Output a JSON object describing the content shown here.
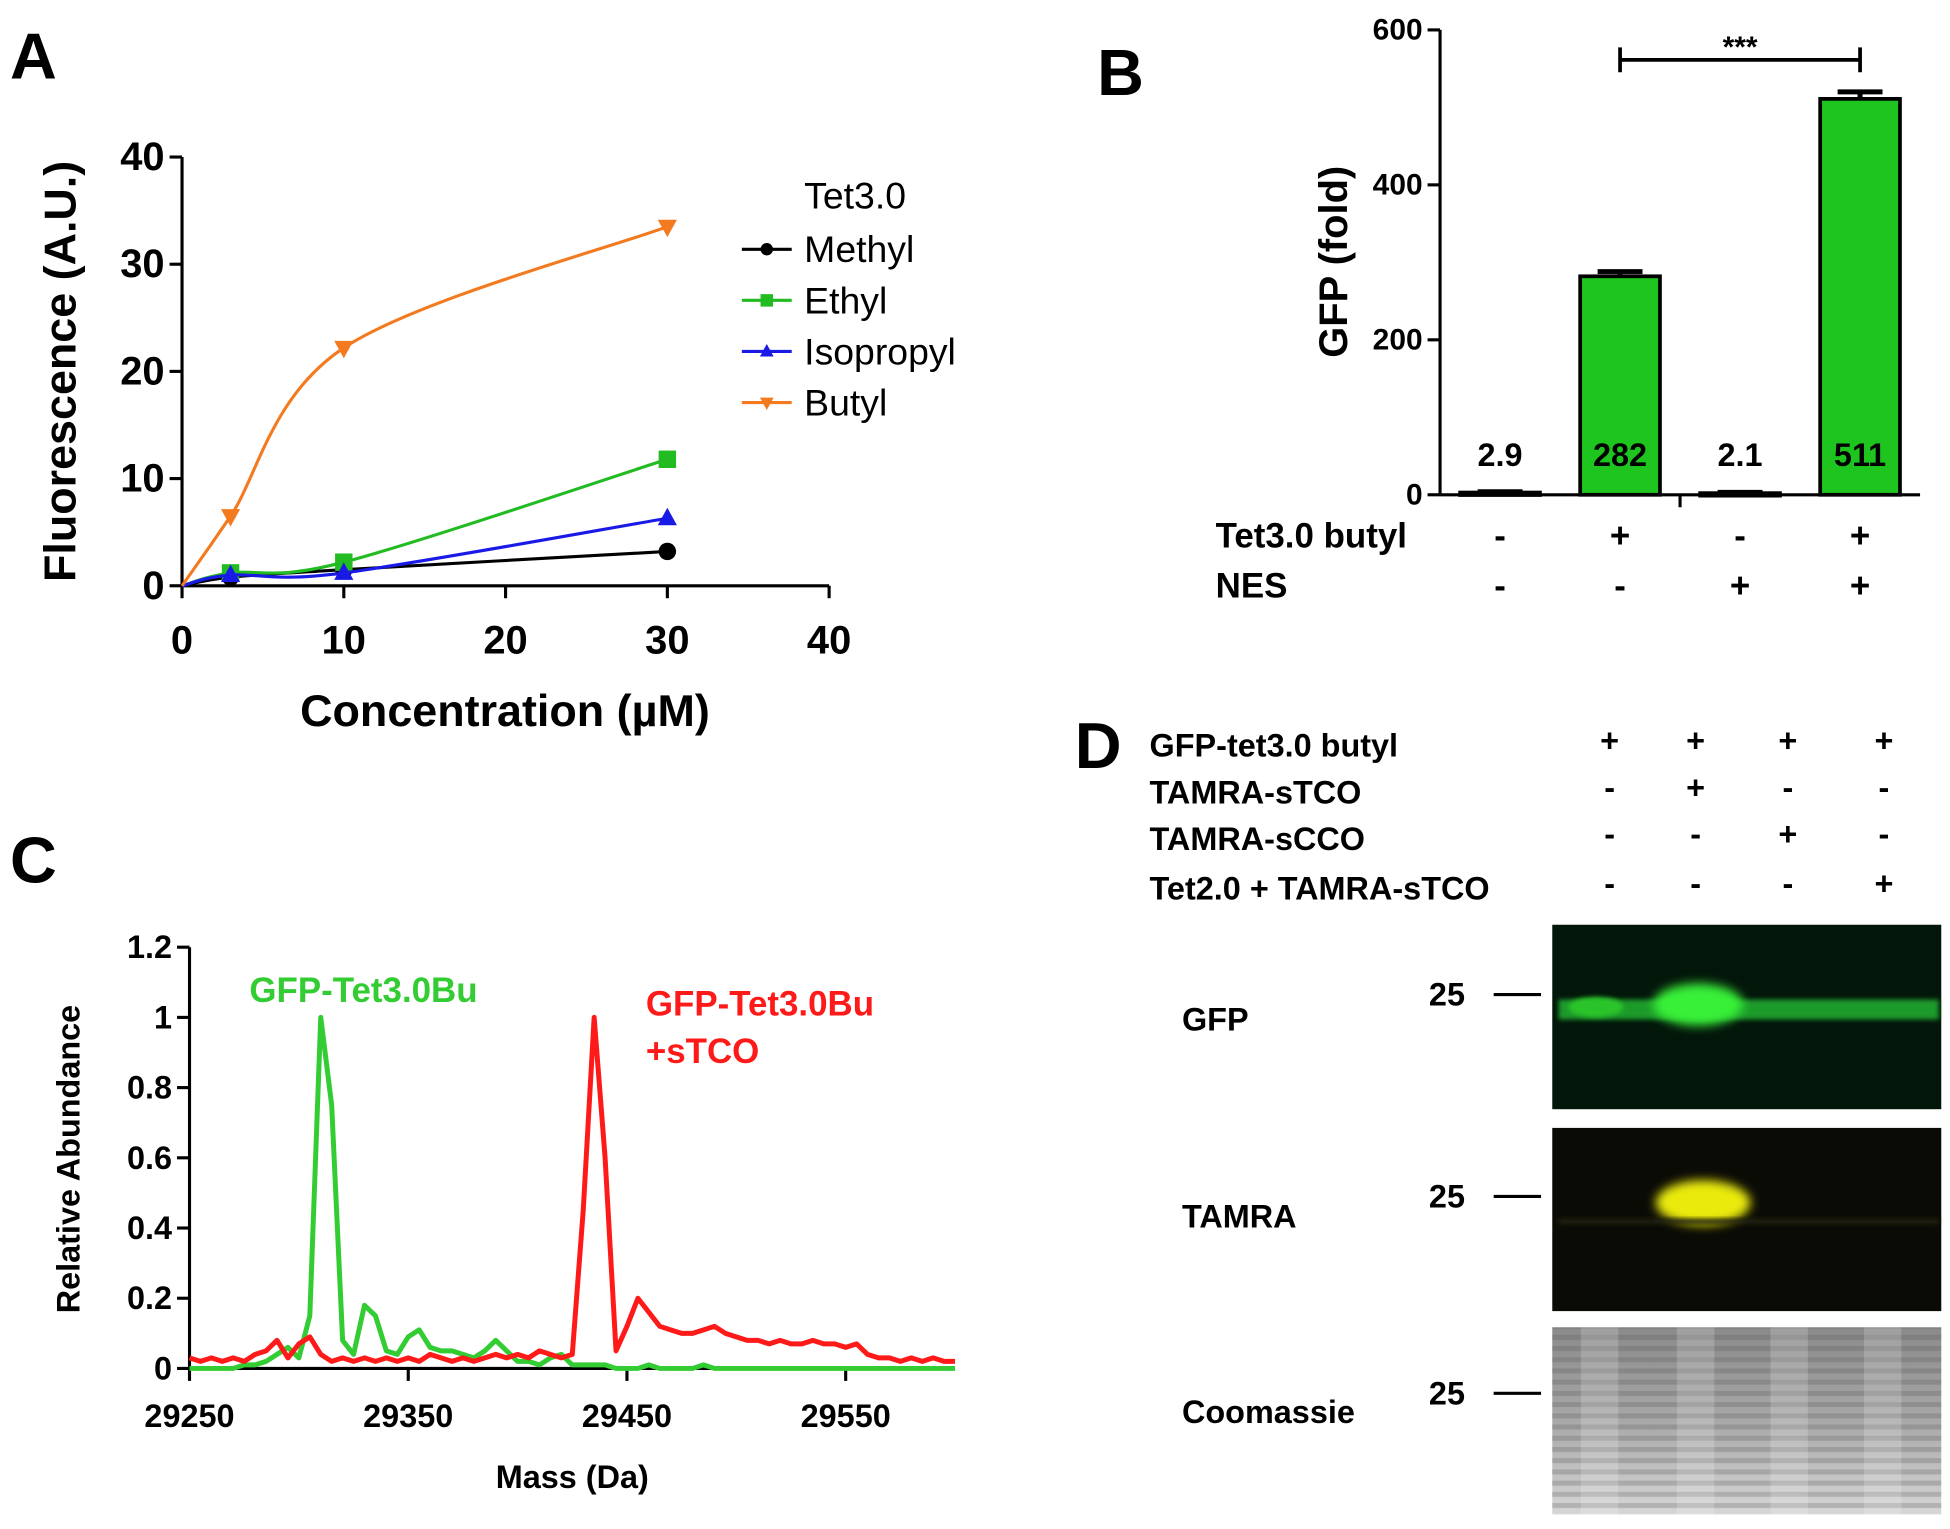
{
  "chart_data": [
    {
      "type": "scatter",
      "panel": "A",
      "legend_title": "Tet3.0",
      "x_label": "Concentration (µM)",
      "y_label": "Fluorescence (A.U.)",
      "x": [
        3,
        10,
        30
      ],
      "series": [
        {
          "name": "Methyl",
          "color": "#000000",
          "marker": "circle",
          "values": [
            0.8,
            1.5,
            3.2
          ]
        },
        {
          "name": "Ethyl",
          "color": "#22bb22",
          "marker": "square",
          "values": [
            1.2,
            2.2,
            11.8
          ]
        },
        {
          "name": "Isopropyl",
          "color": "#1a1ae6",
          "marker": "triangle-up",
          "values": [
            1.0,
            1.2,
            6.3
          ]
        },
        {
          "name": "Butyl",
          "color": "#f47a20",
          "marker": "triangle-down",
          "values": [
            6.5,
            22.2,
            33.5
          ]
        }
      ],
      "xlim": [
        0,
        40
      ],
      "xticks": [
        0,
        10,
        20,
        30,
        40
      ],
      "ylim": [
        0,
        40
      ],
      "yticks": [
        0,
        10,
        20,
        30,
        40
      ]
    },
    {
      "type": "bar",
      "panel": "B",
      "y_label": "GFP (fold)",
      "values": [
        2.9,
        282,
        2.1,
        511
      ],
      "value_labels": [
        "2.9",
        "282",
        "2.1",
        "511"
      ],
      "errors": [
        1,
        6,
        1,
        9
      ],
      "color": "#1ec51e",
      "ylim": [
        0,
        600
      ],
      "yticks": [
        0,
        200,
        400,
        600
      ],
      "significance": "***",
      "conditions": [
        {
          "label": "Tet3.0 butyl",
          "values": [
            "-",
            "+",
            "-",
            "+"
          ]
        },
        {
          "label": "NES",
          "values": [
            "-",
            "-",
            "+",
            "+"
          ]
        }
      ]
    },
    {
      "type": "line",
      "panel": "C",
      "x_label": "Mass (Da)",
      "y_label": "Relative Abundance",
      "x": [
        29250,
        29255,
        29260,
        29265,
        29270,
        29275,
        29280,
        29285,
        29290,
        29295,
        29300,
        29305,
        29310,
        29315,
        29320,
        29325,
        29330,
        29335,
        29340,
        29345,
        29350,
        29355,
        29360,
        29365,
        29370,
        29375,
        29380,
        29385,
        29390,
        29395,
        29400,
        29405,
        29410,
        29415,
        29420,
        29425,
        29430,
        29435,
        29440,
        29445,
        29450,
        29455,
        29460,
        29465,
        29470,
        29475,
        29480,
        29485,
        29490,
        29495,
        29500,
        29505,
        29510,
        29515,
        29520,
        29525,
        29530,
        29535,
        29540,
        29545,
        29550,
        29555,
        29560,
        29565,
        29570,
        29575,
        29580,
        29585,
        29590,
        29595,
        29600
      ],
      "series": [
        {
          "name": "GFP-Tet3.0Bu",
          "color": "#33cc33",
          "values": [
            0,
            0,
            0,
            0,
            0,
            0.01,
            0.01,
            0.02,
            0.04,
            0.06,
            0.03,
            0.15,
            1.0,
            0.75,
            0.08,
            0.04,
            0.18,
            0.15,
            0.05,
            0.04,
            0.09,
            0.11,
            0.06,
            0.05,
            0.05,
            0.04,
            0.03,
            0.05,
            0.08,
            0.05,
            0.02,
            0.02,
            0.01,
            0.03,
            0.04,
            0.01,
            0.01,
            0.01,
            0.01,
            0,
            0,
            0,
            0.01,
            0,
            0,
            0,
            0,
            0.01,
            0,
            0,
            0,
            0,
            0,
            0,
            0,
            0,
            0,
            0,
            0,
            0,
            0,
            0,
            0,
            0,
            0,
            0,
            0,
            0,
            0,
            0,
            0
          ]
        },
        {
          "name": "GFP-Tet3.0Bu +sTCO",
          "color": "#ff1a1a",
          "values": [
            0.03,
            0.02,
            0.03,
            0.02,
            0.03,
            0.02,
            0.04,
            0.05,
            0.08,
            0.03,
            0.07,
            0.09,
            0.04,
            0.02,
            0.03,
            0.02,
            0.03,
            0.02,
            0.03,
            0.02,
            0.03,
            0.02,
            0.04,
            0.03,
            0.02,
            0.03,
            0.02,
            0.03,
            0.04,
            0.03,
            0.04,
            0.03,
            0.05,
            0.04,
            0.03,
            0.04,
            0.45,
            1.0,
            0.6,
            0.05,
            0.12,
            0.2,
            0.16,
            0.12,
            0.11,
            0.1,
            0.1,
            0.11,
            0.12,
            0.1,
            0.09,
            0.08,
            0.08,
            0.07,
            0.08,
            0.07,
            0.07,
            0.08,
            0.07,
            0.07,
            0.06,
            0.07,
            0.04,
            0.03,
            0.03,
            0.02,
            0.03,
            0.02,
            0.03,
            0.02,
            0.02
          ]
        }
      ],
      "xlim": [
        29250,
        29600
      ],
      "xticks": [
        29250,
        29350,
        29450,
        29550
      ],
      "ylim": [
        0,
        1.2
      ],
      "yticks": [
        0,
        0.2,
        0.4,
        0.6,
        0.8,
        1,
        1.2
      ]
    }
  ],
  "gel": {
    "panel": "D",
    "rows": [
      {
        "label": "GFP-tet3.0 butyl",
        "values": [
          "+",
          "+",
          "+",
          "+"
        ]
      },
      {
        "label": "TAMRA-sTCO",
        "values": [
          "-",
          "+",
          "-",
          "-"
        ]
      },
      {
        "label": "TAMRA-sCCO",
        "values": [
          "-",
          "-",
          "+",
          "-"
        ]
      },
      {
        "label": "Tet2.0 + TAMRA-sTCO",
        "values": [
          "-",
          "-",
          "-",
          "+"
        ]
      }
    ],
    "blots": [
      {
        "label": "GFP",
        "marker": 25
      },
      {
        "label": "TAMRA",
        "marker": 25
      },
      {
        "label": "Coomassie",
        "marker": 25
      }
    ]
  }
}
